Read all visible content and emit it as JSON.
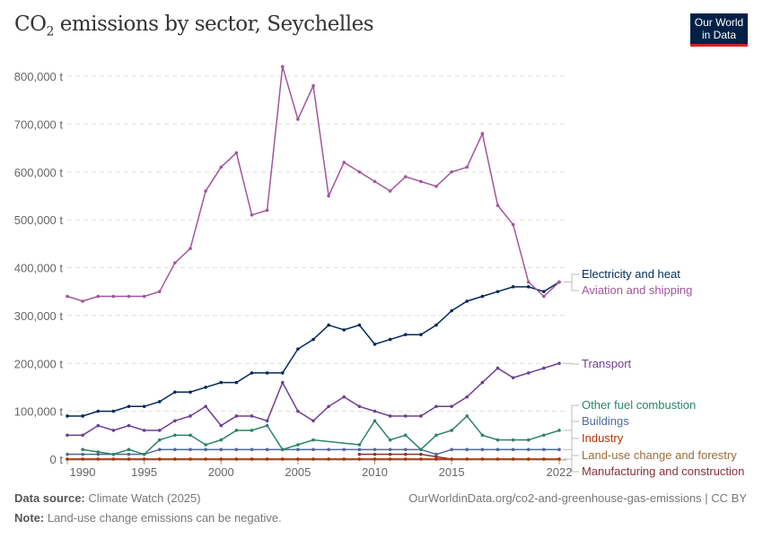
{
  "title_main": "CO",
  "title_sub": "2",
  "title_rest": " emissions by sector, Seychelles",
  "logo": {
    "line1": "Our World",
    "line2": "in Data"
  },
  "footer": {
    "source_label": "Data source:",
    "source": " Climate Watch (2025)",
    "url": "OurWorldinData.org/co2-and-greenhouse-gas-emissions | CC BY",
    "note_label": "Note:",
    "note": " Land-use change emissions can be negative."
  },
  "chart_data": {
    "type": "line",
    "title": "CO₂ emissions by sector, Seychelles",
    "xlim": [
      1990,
      2022
    ],
    "ylim": [
      0,
      800000
    ],
    "x_ticks": [
      1990,
      1995,
      2000,
      2005,
      2010,
      2015,
      2022
    ],
    "y_ticks": [
      {
        "v": 0,
        "label": "0 t"
      },
      {
        "v": 100000,
        "label": "100,000 t"
      },
      {
        "v": 200000,
        "label": "200,000 t"
      },
      {
        "v": 300000,
        "label": "300,000 t"
      },
      {
        "v": 400000,
        "label": "400,000 t"
      },
      {
        "v": 500000,
        "label": "500,000 t"
      },
      {
        "v": 600000,
        "label": "600,000 t"
      },
      {
        "v": 700000,
        "label": "700,000 t"
      },
      {
        "v": 800000,
        "label": "800,000 t"
      }
    ],
    "grid": "horizontal dashed",
    "legend": "right, labels at line ends",
    "unit": "t",
    "x": [
      1990,
      1991,
      1992,
      1993,
      1994,
      1995,
      1996,
      1997,
      1998,
      1999,
      2000,
      2001,
      2002,
      2003,
      2004,
      2005,
      2006,
      2007,
      2008,
      2009,
      2010,
      2011,
      2012,
      2013,
      2014,
      2015,
      2016,
      2017,
      2018,
      2019,
      2020,
      2021,
      2022
    ],
    "series": [
      {
        "name": "Aviation and shipping",
        "color": "#a2559c",
        "values": [
          340000,
          330000,
          340000,
          340000,
          340000,
          340000,
          350000,
          410000,
          440000,
          560000,
          610000,
          640000,
          510000,
          520000,
          820000,
          710000,
          780000,
          550000,
          620000,
          600000,
          580000,
          560000,
          590000,
          580000,
          570000,
          600000,
          610000,
          680000,
          530000,
          490000,
          370000,
          340000,
          370000
        ]
      },
      {
        "name": "Electricity and heat",
        "color": "#00295b",
        "values": [
          90000,
          90000,
          100000,
          100000,
          110000,
          110000,
          120000,
          140000,
          140000,
          150000,
          160000,
          160000,
          180000,
          180000,
          180000,
          230000,
          250000,
          280000,
          270000,
          280000,
          240000,
          250000,
          260000,
          260000,
          280000,
          310000,
          330000,
          340000,
          350000,
          360000,
          360000,
          350000,
          370000
        ]
      },
      {
        "name": "Transport",
        "color": "#6d3e91",
        "values": [
          50000,
          50000,
          70000,
          60000,
          70000,
          60000,
          60000,
          80000,
          90000,
          110000,
          70000,
          90000,
          90000,
          80000,
          160000,
          100000,
          80000,
          110000,
          130000,
          110000,
          100000,
          90000,
          90000,
          90000,
          110000,
          110000,
          130000,
          160000,
          190000,
          170000,
          180000,
          190000,
          200000
        ]
      },
      {
        "name": "Other fuel combustion",
        "color": "#2c8465",
        "values": [
          null,
          20000,
          15000,
          10000,
          20000,
          10000,
          40000,
          50000,
          50000,
          30000,
          40000,
          60000,
          60000,
          70000,
          20000,
          30000,
          40000,
          null,
          null,
          30000,
          80000,
          40000,
          50000,
          20000,
          50000,
          60000,
          90000,
          50000,
          40000,
          40000,
          40000,
          50000,
          60000
        ]
      },
      {
        "name": "Buildings",
        "color": "#4c6a9c",
        "values": [
          10000,
          10000,
          10000,
          10000,
          10000,
          10000,
          20000,
          20000,
          20000,
          20000,
          20000,
          20000,
          20000,
          20000,
          20000,
          20000,
          20000,
          20000,
          20000,
          20000,
          20000,
          20000,
          20000,
          20000,
          10000,
          20000,
          20000,
          20000,
          20000,
          20000,
          20000,
          20000,
          20000
        ]
      },
      {
        "name": "Industry",
        "color": "#b13507",
        "values": [
          0,
          0,
          0,
          0,
          0,
          0,
          0,
          0,
          0,
          0,
          0,
          0,
          0,
          0,
          0,
          0,
          0,
          0,
          0,
          0,
          0,
          0,
          0,
          0,
          0,
          0,
          0,
          0,
          0,
          0,
          0,
          0,
          0
        ]
      },
      {
        "name": "Land-use change and forestry",
        "color": "#996d39",
        "values": [
          0,
          0,
          0,
          0,
          0,
          0,
          0,
          0,
          0,
          0,
          0,
          0,
          0,
          0,
          0,
          0,
          0,
          0,
          0,
          0,
          0,
          0,
          0,
          0,
          0,
          0,
          0,
          0,
          0,
          0,
          0,
          0,
          0
        ]
      },
      {
        "name": "Manufacturing and construction",
        "color": "#883039",
        "values": [
          null,
          null,
          null,
          null,
          null,
          null,
          null,
          null,
          null,
          null,
          null,
          null,
          null,
          null,
          null,
          null,
          null,
          null,
          null,
          10000,
          10000,
          10000,
          10000,
          10000,
          5000,
          0,
          null,
          null,
          null,
          null,
          null,
          null,
          null
        ]
      }
    ]
  }
}
